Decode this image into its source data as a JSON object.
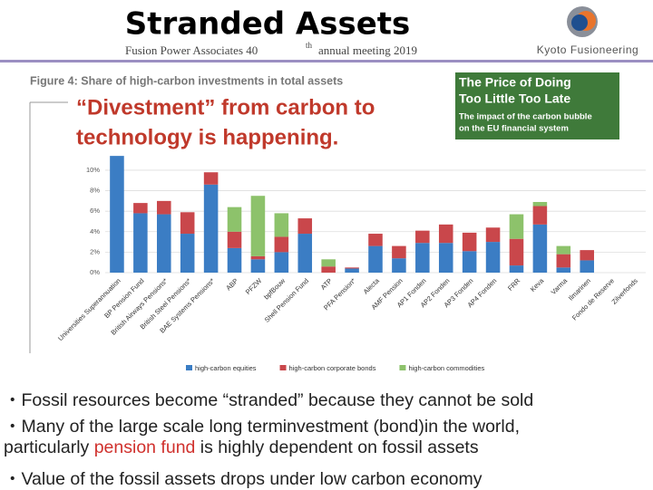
{
  "header": {
    "title": "Stranded Assets",
    "subtitle": [
      "Fusion Power Associates 40",
      "th",
      "annual meeting 2019"
    ],
    "logo": "Kyoto Fusioneering"
  },
  "overlay": [
    "“Divestment” from carbon to",
    "technology is happening."
  ],
  "report": {
    "title": [
      "The Price of Doing",
      "Too Little Too Late"
    ],
    "subtitle": [
      "The impact of the carbon bubble",
      "on the EU financial system"
    ]
  },
  "chart_data": {
    "type": "stacked_bar",
    "title": "Figure 4: Share of high-carbon investments in total assets",
    "categories": [
      "Universities Superannuation",
      "BP Pension Fund",
      "British Airways Pensions*",
      "British Steel Pensions*",
      "BAE Systems Pensions*",
      "ABP",
      "PFZW",
      "bpfBouw",
      "Shell Pension Fund",
      "ATP",
      "PFA Pension*",
      "Alecta",
      "AMF Pension",
      "AP1 Fonden",
      "AP2 Fonden",
      "AP3 Fonden",
      "AP4 Fonden",
      "FRR",
      "Keva",
      "Varma",
      "Ilmarinen",
      "Fondo de Reserve",
      "Zilverfonds"
    ],
    "series": [
      {
        "name": "high-carbon equities",
        "color": "#3b7dc4",
        "values": [
          11.4,
          5.8,
          5.7,
          3.8,
          8.6,
          2.4,
          1.3,
          2.0,
          3.8,
          0,
          0.4,
          2.6,
          1.4,
          2.9,
          2.9,
          2.1,
          3.0,
          0.7,
          4.7,
          0.5,
          1.2,
          0,
          0
        ]
      },
      {
        "name": "high-carbon corporate bonds",
        "color": "#c9474b",
        "values": [
          0,
          1.0,
          1.3,
          2.1,
          1.2,
          1.6,
          0.3,
          1.5,
          1.5,
          0.6,
          0.1,
          1.2,
          1.2,
          1.2,
          1.8,
          1.8,
          1.4,
          2.6,
          1.8,
          1.3,
          1.0,
          0,
          0
        ]
      },
      {
        "name": "high-carbon commodities",
        "color": "#8dc26b",
        "values": [
          0,
          0,
          0,
          0,
          0,
          2.4,
          5.9,
          2.3,
          0,
          0.7,
          0,
          0,
          0,
          0,
          0,
          0,
          0,
          2.4,
          0.4,
          0.8,
          0,
          0,
          0
        ]
      }
    ],
    "ylim": [
      0,
      11.5
    ],
    "yticks": [
      {
        "value": 0,
        "label": "0%"
      },
      {
        "value": 2,
        "label": "2%"
      },
      {
        "value": 4,
        "label": "4%"
      },
      {
        "value": 6,
        "label": "6%"
      },
      {
        "value": 8,
        "label": "8%"
      },
      {
        "value": 10,
        "label": "10%"
      }
    ],
    "grid": true
  },
  "bullets": [
    [
      {
        "text": "・Fossil resources  become “stranded” because they cannot be sold"
      }
    ],
    [
      {
        "text": "・Many of the large scale long terminvestment (bond)in the world,"
      }
    ],
    [
      {
        "text": "particularly "
      },
      {
        "text": "pension fund",
        "color": "#d0312d"
      },
      {
        "text": " is highly dependent on fossil assets"
      }
    ],
    [
      {
        "text": "・Value of the fossil assets drops under low carbon economy"
      }
    ]
  ]
}
